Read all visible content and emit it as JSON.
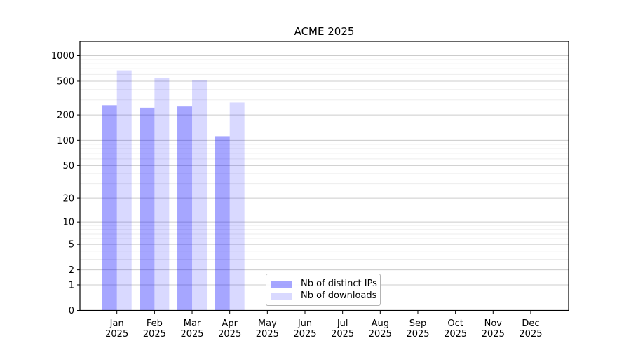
{
  "chart_data": {
    "type": "bar",
    "title": "ACME 2025",
    "categories": [
      "Jan",
      "Feb",
      "Mar",
      "Apr",
      "May",
      "Jun",
      "Jul",
      "Aug",
      "Sep",
      "Oct",
      "Nov",
      "Dec"
    ],
    "year_label": "2025",
    "series": [
      {
        "name": "Nb of distinct IPs",
        "color": "rgba(0,0,255,0.35)",
        "values": [
          260,
          243,
          251,
          112,
          0,
          0,
          0,
          0,
          0,
          0,
          0,
          0
        ]
      },
      {
        "name": "Nb of downloads",
        "color": "rgba(0,0,255,0.15)",
        "values": [
          670,
          545,
          514,
          280,
          0,
          0,
          0,
          0,
          0,
          0,
          0,
          0
        ]
      }
    ],
    "y_scale": "log10(value+1)",
    "y_ticks": [
      0,
      1,
      2,
      5,
      10,
      20,
      50,
      100,
      200,
      500,
      1000
    ],
    "y_minor_ticks": [
      3,
      4,
      6,
      7,
      8,
      9,
      30,
      40,
      60,
      70,
      80,
      90,
      300,
      400,
      600,
      700,
      800,
      900
    ],
    "ylim": [
      0,
      1460
    ],
    "xlabel": "",
    "ylabel": "",
    "grid": {
      "major_color": "#cccccc",
      "minor_color": "#ededed"
    },
    "axis_color": "#000000",
    "text_color": "#000000",
    "background": "#ffffff",
    "legend": {
      "position": "lower-center-left"
    }
  }
}
